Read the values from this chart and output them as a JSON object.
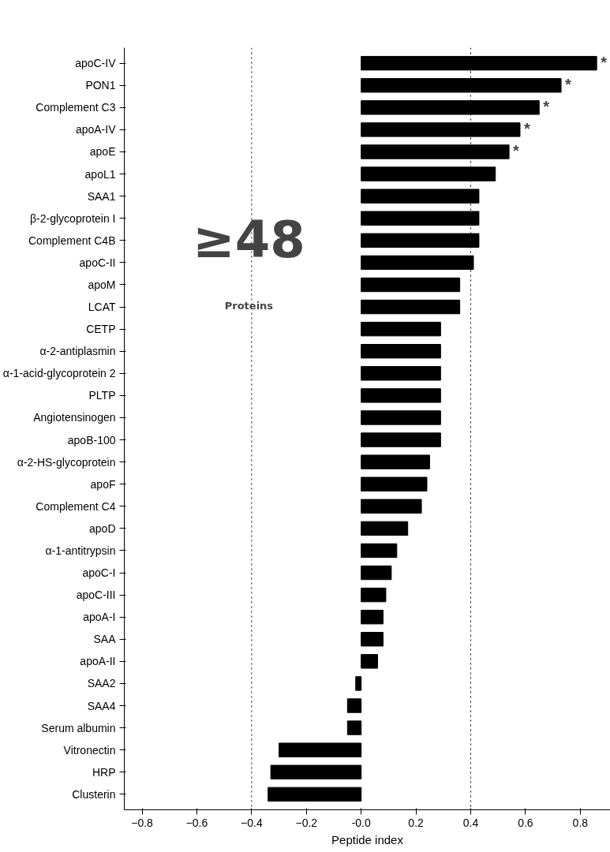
{
  "chart_data": {
    "type": "bar",
    "orientation": "horizontal",
    "xlabel": "Peptide index",
    "categories": [
      "apoC-IV",
      "PON1",
      "Complement C3",
      "apoA-IV",
      "apoE",
      "apoL1",
      "SAA1",
      "β-2-glycoprotein I",
      "Complement C4B",
      "apoC-II",
      "apoM",
      "LCAT",
      "CETP",
      "α-2-antiplasmin",
      "α-1-acid-glycoprotein 2",
      "PLTP",
      "Angiotensinogen",
      "apoB-100",
      "α-2-HS-glycoprotein",
      "apoF",
      "Complement C4",
      "apoD",
      "α-1-antitrypsin",
      "apoC-I",
      "apoC-III",
      "apoA-I",
      "SAA",
      "apoA-II",
      "SAA2",
      "SAA4",
      "Serum albumin",
      "Vitronectin",
      "HRP",
      "Clusterin"
    ],
    "values": [
      0.86,
      0.73,
      0.65,
      0.58,
      0.54,
      0.49,
      0.43,
      0.43,
      0.43,
      0.41,
      0.36,
      0.36,
      0.29,
      0.29,
      0.29,
      0.29,
      0.29,
      0.29,
      0.25,
      0.24,
      0.22,
      0.17,
      0.13,
      0.11,
      0.09,
      0.08,
      0.08,
      0.06,
      -0.02,
      -0.05,
      -0.05,
      -0.3,
      -0.33,
      -0.34
    ],
    "color": "#000000",
    "xlim": [
      -0.865,
      0.91
    ],
    "xticks": [
      -0.8,
      -0.6,
      -0.4,
      -0.2,
      {
        "value": 0,
        "label": "-0.0"
      },
      0.2,
      0.4,
      0.6,
      0.8
    ],
    "ref_lines": [
      {
        "axis": "x",
        "value": -0.4,
        "line_style": "dotted",
        "color": "#000000"
      },
      {
        "axis": "x",
        "value": 0.4,
        "line_style": "dotted",
        "color": "#000000"
      }
    ],
    "annotations": [
      "≥48",
      "Proteins",
      {
        "text": "*",
        "x": 0.86,
        "y": "apoC-IV"
      },
      {
        "text": "*",
        "x": 0.73,
        "y": "PON1"
      },
      {
        "text": "*",
        "x": 0.65,
        "y": "Complement C3"
      },
      {
        "text": "*",
        "x": 0.58,
        "y": "apoA-IV"
      },
      {
        "text": "*",
        "x": 0.54,
        "y": "apoE"
      }
    ],
    "grid": false
  }
}
